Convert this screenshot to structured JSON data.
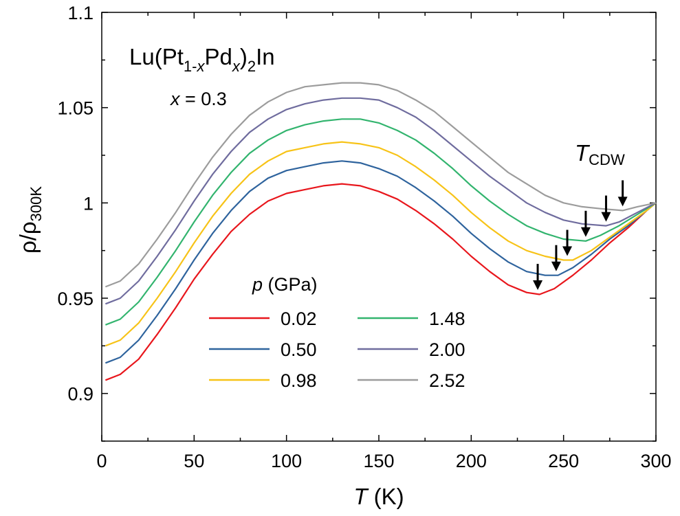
{
  "chart_data": {
    "type": "line",
    "title_parts": {
      "base": "Lu(Pt",
      "sub1": "1-",
      "sub1_italic": "x",
      "mid": "Pd",
      "sub2_italic": "x",
      "close": ")",
      "sub3": "2",
      "tail": "In"
    },
    "composition": {
      "var": "x",
      "eq": " = 0.3"
    },
    "xlabel": {
      "var": "T",
      "unit": " (K)"
    },
    "ylabel": {
      "main": "ρ/ρ",
      "sub": "300K"
    },
    "xlim": [
      0,
      300
    ],
    "ylim": [
      0.875,
      1.1
    ],
    "xticks": [
      "0",
      "50",
      "100",
      "150",
      "200",
      "250",
      "300"
    ],
    "yticks": [
      "0.9",
      "0.95",
      "1",
      "1.05",
      "1.1"
    ],
    "legend": {
      "title_var": "p",
      "title_unit": " (GPa)",
      "placement": "lower-center"
    },
    "annotation": {
      "main": "T",
      "sub": "CDW"
    },
    "series": [
      {
        "name": "0.02",
        "color": "#e8161c",
        "tcdw": 236,
        "points": [
          [
            2,
            0.907
          ],
          [
            10,
            0.91
          ],
          [
            20,
            0.918
          ],
          [
            30,
            0.931
          ],
          [
            40,
            0.945
          ],
          [
            50,
            0.96
          ],
          [
            60,
            0.973
          ],
          [
            70,
            0.985
          ],
          [
            80,
            0.994
          ],
          [
            90,
            1.001
          ],
          [
            100,
            1.005
          ],
          [
            110,
            1.007
          ],
          [
            120,
            1.009
          ],
          [
            130,
            1.01
          ],
          [
            140,
            1.009
          ],
          [
            150,
            1.006
          ],
          [
            160,
            1.002
          ],
          [
            170,
            0.996
          ],
          [
            180,
            0.989
          ],
          [
            190,
            0.981
          ],
          [
            200,
            0.972
          ],
          [
            210,
            0.964
          ],
          [
            220,
            0.957
          ],
          [
            230,
            0.953
          ],
          [
            237,
            0.952
          ],
          [
            245,
            0.955
          ],
          [
            255,
            0.962
          ],
          [
            265,
            0.97
          ],
          [
            275,
            0.979
          ],
          [
            285,
            0.987
          ],
          [
            295,
            0.996
          ],
          [
            300,
            1.0
          ]
        ]
      },
      {
        "name": "0.50",
        "color": "#2e639d",
        "tcdw": 246,
        "points": [
          [
            2,
            0.916
          ],
          [
            10,
            0.919
          ],
          [
            20,
            0.928
          ],
          [
            30,
            0.941
          ],
          [
            40,
            0.955
          ],
          [
            50,
            0.97
          ],
          [
            60,
            0.984
          ],
          [
            70,
            0.996
          ],
          [
            80,
            1.006
          ],
          [
            90,
            1.013
          ],
          [
            100,
            1.017
          ],
          [
            110,
            1.019
          ],
          [
            120,
            1.021
          ],
          [
            130,
            1.022
          ],
          [
            140,
            1.021
          ],
          [
            150,
            1.018
          ],
          [
            160,
            1.014
          ],
          [
            170,
            1.008
          ],
          [
            180,
            1.001
          ],
          [
            190,
            0.993
          ],
          [
            200,
            0.984
          ],
          [
            210,
            0.976
          ],
          [
            220,
            0.969
          ],
          [
            230,
            0.964
          ],
          [
            240,
            0.962
          ],
          [
            247,
            0.962
          ],
          [
            255,
            0.966
          ],
          [
            265,
            0.973
          ],
          [
            275,
            0.981
          ],
          [
            285,
            0.988
          ],
          [
            295,
            0.996
          ],
          [
            300,
            1.0
          ]
        ]
      },
      {
        "name": "0.98",
        "color": "#f7c317",
        "tcdw": 252,
        "points": [
          [
            2,
            0.925
          ],
          [
            10,
            0.928
          ],
          [
            20,
            0.937
          ],
          [
            30,
            0.95
          ],
          [
            40,
            0.964
          ],
          [
            50,
            0.979
          ],
          [
            60,
            0.993
          ],
          [
            70,
            1.005
          ],
          [
            80,
            1.015
          ],
          [
            90,
            1.022
          ],
          [
            100,
            1.027
          ],
          [
            110,
            1.029
          ],
          [
            120,
            1.031
          ],
          [
            130,
            1.032
          ],
          [
            140,
            1.031
          ],
          [
            150,
            1.029
          ],
          [
            160,
            1.025
          ],
          [
            170,
            1.019
          ],
          [
            180,
            1.012
          ],
          [
            190,
            1.004
          ],
          [
            200,
            0.995
          ],
          [
            210,
            0.987
          ],
          [
            220,
            0.98
          ],
          [
            230,
            0.975
          ],
          [
            240,
            0.972
          ],
          [
            250,
            0.97
          ],
          [
            255,
            0.97
          ],
          [
            265,
            0.975
          ],
          [
            275,
            0.982
          ],
          [
            285,
            0.989
          ],
          [
            295,
            0.996
          ],
          [
            300,
            1.0
          ]
        ]
      },
      {
        "name": "1.48",
        "color": "#32b46e",
        "tcdw": 262,
        "points": [
          [
            2,
            0.936
          ],
          [
            10,
            0.939
          ],
          [
            20,
            0.948
          ],
          [
            30,
            0.961
          ],
          [
            40,
            0.975
          ],
          [
            50,
            0.99
          ],
          [
            60,
            1.004
          ],
          [
            70,
            1.016
          ],
          [
            80,
            1.026
          ],
          [
            90,
            1.033
          ],
          [
            100,
            1.038
          ],
          [
            110,
            1.041
          ],
          [
            120,
            1.043
          ],
          [
            130,
            1.044
          ],
          [
            140,
            1.044
          ],
          [
            150,
            1.042
          ],
          [
            160,
            1.038
          ],
          [
            170,
            1.033
          ],
          [
            180,
            1.026
          ],
          [
            190,
            1.018
          ],
          [
            200,
            1.009
          ],
          [
            210,
            1.001
          ],
          [
            220,
            0.994
          ],
          [
            230,
            0.988
          ],
          [
            240,
            0.984
          ],
          [
            250,
            0.981
          ],
          [
            262,
            0.98
          ],
          [
            270,
            0.983
          ],
          [
            280,
            0.988
          ],
          [
            290,
            0.994
          ],
          [
            300,
            1.0
          ]
        ]
      },
      {
        "name": "2.00",
        "color": "#6f6c9e",
        "tcdw": 273,
        "points": [
          [
            2,
            0.947
          ],
          [
            10,
            0.95
          ],
          [
            20,
            0.959
          ],
          [
            30,
            0.972
          ],
          [
            40,
            0.986
          ],
          [
            50,
            1.001
          ],
          [
            60,
            1.015
          ],
          [
            70,
            1.027
          ],
          [
            80,
            1.037
          ],
          [
            90,
            1.044
          ],
          [
            100,
            1.049
          ],
          [
            110,
            1.052
          ],
          [
            120,
            1.054
          ],
          [
            130,
            1.055
          ],
          [
            140,
            1.055
          ],
          [
            150,
            1.054
          ],
          [
            160,
            1.05
          ],
          [
            170,
            1.045
          ],
          [
            180,
            1.038
          ],
          [
            190,
            1.03
          ],
          [
            200,
            1.022
          ],
          [
            210,
            1.014
          ],
          [
            220,
            1.007
          ],
          [
            230,
            1.0
          ],
          [
            240,
            0.995
          ],
          [
            250,
            0.991
          ],
          [
            260,
            0.989
          ],
          [
            273,
            0.988
          ],
          [
            280,
            0.99
          ],
          [
            290,
            0.995
          ],
          [
            300,
            1.0
          ]
        ]
      },
      {
        "name": "2.52",
        "color": "#9c9c9c",
        "tcdw": 282,
        "points": [
          [
            2,
            0.956
          ],
          [
            10,
            0.959
          ],
          [
            20,
            0.968
          ],
          [
            30,
            0.981
          ],
          [
            40,
            0.995
          ],
          [
            50,
            1.01
          ],
          [
            60,
            1.024
          ],
          [
            70,
            1.036
          ],
          [
            80,
            1.046
          ],
          [
            90,
            1.053
          ],
          [
            100,
            1.058
          ],
          [
            110,
            1.061
          ],
          [
            120,
            1.062
          ],
          [
            130,
            1.063
          ],
          [
            140,
            1.063
          ],
          [
            150,
            1.062
          ],
          [
            160,
            1.059
          ],
          [
            170,
            1.054
          ],
          [
            180,
            1.048
          ],
          [
            190,
            1.04
          ],
          [
            200,
            1.032
          ],
          [
            210,
            1.024
          ],
          [
            220,
            1.016
          ],
          [
            230,
            1.01
          ],
          [
            240,
            1.004
          ],
          [
            250,
            1.0
          ],
          [
            260,
            0.998
          ],
          [
            270,
            0.997
          ],
          [
            282,
            0.996
          ],
          [
            290,
            0.998
          ],
          [
            300,
            1.0
          ]
        ]
      }
    ]
  }
}
